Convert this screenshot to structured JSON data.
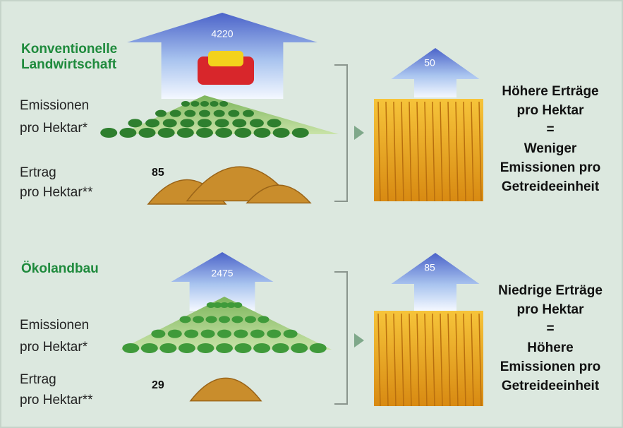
{
  "sections": [
    {
      "title": [
        "Konventionelle",
        "Landwirtschaft"
      ],
      "emissions_label": [
        "Emissionen",
        "pro Hektar*"
      ],
      "emissions_value": 4220,
      "yield_label": [
        "Ertrag",
        "pro Hektar**"
      ],
      "yield_value": 85,
      "unit_emissions": 50,
      "conclusion": [
        "Höhere Erträge",
        "pro Hektar",
        "=",
        "Weniger",
        "Emissionen pro",
        "Getreideeinheit"
      ]
    },
    {
      "title": [
        "Ökolandbau"
      ],
      "emissions_label": [
        "Emissionen",
        "pro Hektar*"
      ],
      "emissions_value": 2475,
      "yield_label": [
        "Ertrag",
        "pro Hektar**"
      ],
      "yield_value": 29,
      "unit_emissions": 85,
      "conclusion": [
        "Niedrige Erträge",
        "pro Hektar",
        "=",
        "Höhere",
        "Emissionen pro",
        "Getreideeinheit"
      ]
    }
  ]
}
